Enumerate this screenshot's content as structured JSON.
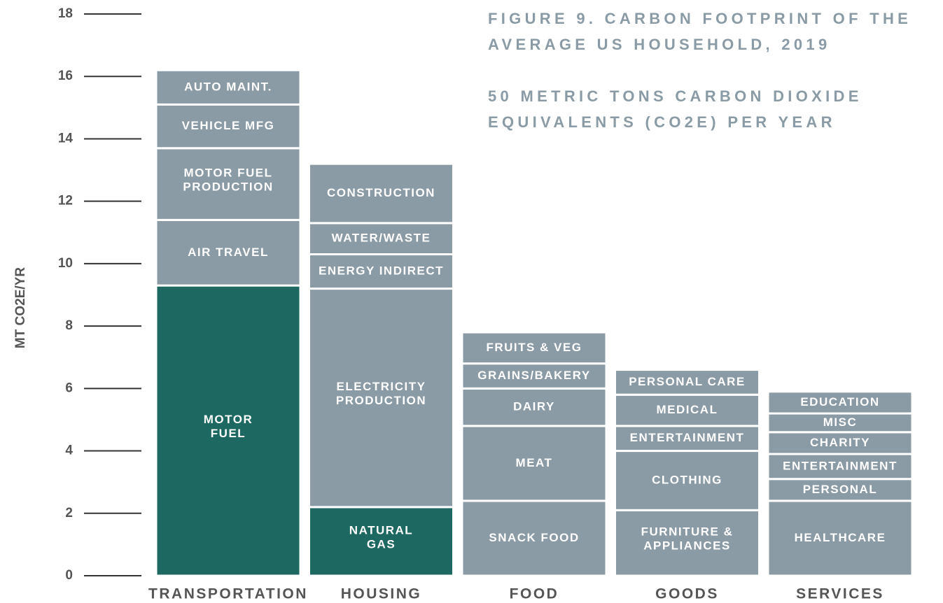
{
  "chart_data": {
    "type": "stacked_bar",
    "title": [
      "FIGURE 9. CARBON FOOTPRINT OF THE",
      "AVERAGE US HOUSEHOLD, 2019"
    ],
    "subtitle": [
      "50 METRIC TONS CARBON DIOXIDE",
      "EQUIVALENTS (CO2E) PER YEAR"
    ],
    "y_label": "MT CO2E/YR",
    "ylim": [
      0,
      18
    ],
    "yticks": [
      0,
      2,
      4,
      6,
      8,
      10,
      12,
      14,
      16,
      18
    ],
    "categories": [
      "TRANSPORTATION",
      "HOUSING",
      "FOOD",
      "GOODS",
      "SERVICES"
    ],
    "stacks": [
      [
        {
          "label": [
            "MOTOR",
            "FUEL"
          ],
          "value": 9.3,
          "color": "#1e6862"
        },
        {
          "label": [
            "AIR TRAVEL"
          ],
          "value": 2.1,
          "color": "#8a9ba6"
        },
        {
          "label": [
            "MOTOR FUEL",
            "PRODUCTION"
          ],
          "value": 2.3,
          "color": "#8a9ba6"
        },
        {
          "label": [
            "VEHICLE MFG"
          ],
          "value": 1.4,
          "color": "#8a9ba6"
        },
        {
          "label": [
            "AUTO MAINT."
          ],
          "value": 1.1,
          "color": "#8a9ba6"
        }
      ],
      [
        {
          "label": [
            "NATURAL",
            "GAS"
          ],
          "value": 2.2,
          "color": "#1e6862"
        },
        {
          "label": [
            "ELECTRICITY",
            "PRODUCTION"
          ],
          "value": 7.0,
          "color": "#8a9ba6"
        },
        {
          "label": [
            "ENERGY INDIRECT"
          ],
          "value": 1.1,
          "color": "#8a9ba6"
        },
        {
          "label": [
            "WATER/WASTE"
          ],
          "value": 1.0,
          "color": "#8a9ba6"
        },
        {
          "label": [
            "CONSTRUCTION"
          ],
          "value": 1.9,
          "color": "#8a9ba6"
        }
      ],
      [
        {
          "label": [
            "SNACK FOOD"
          ],
          "value": 2.4,
          "color": "#8a9ba6"
        },
        {
          "label": [
            "MEAT"
          ],
          "value": 2.4,
          "color": "#8a9ba6"
        },
        {
          "label": [
            "DAIRY"
          ],
          "value": 1.2,
          "color": "#8a9ba6"
        },
        {
          "label": [
            "GRAINS/BAKERY"
          ],
          "value": 0.8,
          "color": "#8a9ba6"
        },
        {
          "label": [
            "FRUITS & VEG"
          ],
          "value": 1.0,
          "color": "#8a9ba6"
        }
      ],
      [
        {
          "label": [
            "FURNITURE &",
            "APPLIANCES"
          ],
          "value": 2.1,
          "color": "#8a9ba6"
        },
        {
          "label": [
            "CLOTHING"
          ],
          "value": 1.9,
          "color": "#8a9ba6"
        },
        {
          "label": [
            "ENTERTAINMENT"
          ],
          "value": 0.8,
          "color": "#8a9ba6"
        },
        {
          "label": [
            "MEDICAL"
          ],
          "value": 1.0,
          "color": "#8a9ba6"
        },
        {
          "label": [
            "PERSONAL CARE"
          ],
          "value": 0.8,
          "color": "#8a9ba6"
        }
      ],
      [
        {
          "label": [
            "HEALTHCARE"
          ],
          "value": 2.4,
          "color": "#8a9ba6"
        },
        {
          "label": [
            "PERSONAL"
          ],
          "value": 0.7,
          "color": "#8a9ba6"
        },
        {
          "label": [
            "ENTERTAINMENT"
          ],
          "value": 0.8,
          "color": "#8a9ba6"
        },
        {
          "label": [
            "CHARITY"
          ],
          "value": 0.7,
          "color": "#8a9ba6"
        },
        {
          "label": [
            "MISC"
          ],
          "value": 0.6,
          "color": "#8a9ba6"
        },
        {
          "label": [
            "EDUCATION"
          ],
          "value": 0.7,
          "color": "#8a9ba6"
        }
      ]
    ]
  }
}
